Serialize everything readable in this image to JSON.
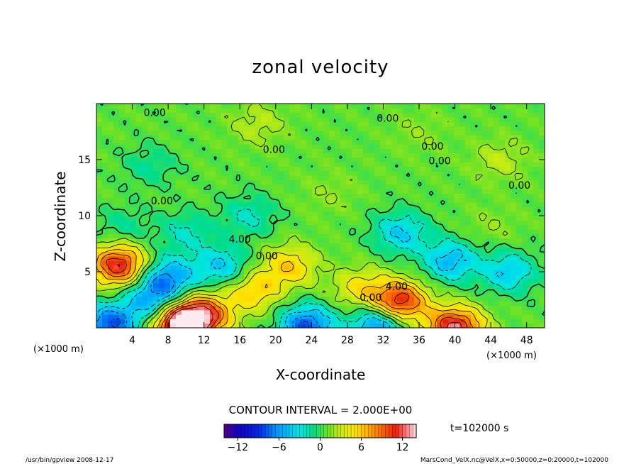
{
  "chart_data": {
    "type": "heatmap",
    "title": "zonal velocity",
    "xlabel": "X-coordinate",
    "ylabel": "Z-coordinate",
    "xunit": "(×1000 m)",
    "xunit_right": "(×1000 m)",
    "xlim": [
      0,
      50
    ],
    "ylim": [
      0,
      20
    ],
    "xticks": [
      "4",
      "8",
      "12",
      "16",
      "20",
      "24",
      "28",
      "32",
      "36",
      "40",
      "44",
      "48"
    ],
    "xtick_values": [
      4,
      8,
      12,
      16,
      20,
      24,
      28,
      32,
      36,
      40,
      44,
      48
    ],
    "yticks": [
      "5",
      "10",
      "15"
    ],
    "ytick_values": [
      5,
      10,
      15
    ],
    "contour_interval_text": "CONTOUR INTERVAL = 2.000E+00",
    "time_text": "t=102000 s",
    "colorbar": {
      "min": -14,
      "max": 14,
      "ticks": [
        "−12",
        "−6",
        "0",
        "6",
        "12"
      ],
      "tick_values": [
        -12,
        -6,
        0,
        6,
        12
      ]
    },
    "contour_labels": [
      {
        "text": "0.00",
        "x": 6.5,
        "z": 18.9
      },
      {
        "text": "0.00",
        "x": 32.5,
        "z": 18.4
      },
      {
        "text": "0.00",
        "x": 19.8,
        "z": 15.6
      },
      {
        "text": "0.00",
        "x": 37.5,
        "z": 15.9
      },
      {
        "text": "0.00",
        "x": 38.3,
        "z": 14.6
      },
      {
        "text": "0.00",
        "x": 47.2,
        "z": 12.4
      },
      {
        "text": "0.00",
        "x": 7.3,
        "z": 11.0
      },
      {
        "text": "4.00",
        "x": 16.0,
        "z": 7.6
      },
      {
        "text": "0.00",
        "x": 19.0,
        "z": 6.1
      },
      {
        "text": "4.00",
        "x": 33.5,
        "z": 3.4
      },
      {
        "text": "0.00",
        "x": 30.6,
        "z": 2.4
      }
    ],
    "features": [
      {
        "x": 2.5,
        "z": 5.6,
        "value": 11
      },
      {
        "x": 9.5,
        "z": 0.3,
        "value": 14
      },
      {
        "x": 12.0,
        "z": 1.2,
        "value": 9
      },
      {
        "x": 33.8,
        "z": 2.3,
        "value": 11
      },
      {
        "x": 40.0,
        "z": 0.0,
        "value": 12
      },
      {
        "x": 17.5,
        "z": 3.3,
        "value": 5
      },
      {
        "x": 21.5,
        "z": 5.5,
        "value": 5
      },
      {
        "x": 29.5,
        "z": 3.5,
        "value": 4
      },
      {
        "x": 8.0,
        "z": 4.5,
        "value": -7
      },
      {
        "x": 6.0,
        "z": 2.5,
        "value": -6
      },
      {
        "x": 14.0,
        "z": 5.5,
        "value": -5
      },
      {
        "x": 10.0,
        "z": 8.5,
        "value": -3
      },
      {
        "x": 17.0,
        "z": 10.0,
        "value": -3
      },
      {
        "x": 34.0,
        "z": 8.5,
        "value": -5
      },
      {
        "x": 39.5,
        "z": 6.0,
        "value": -6
      },
      {
        "x": 46.0,
        "z": 5.0,
        "value": -5
      },
      {
        "x": 1.5,
        "z": 0.3,
        "value": -9
      },
      {
        "x": 23.5,
        "z": 0.2,
        "value": -9
      },
      {
        "x": 31.5,
        "z": 0.3,
        "value": -8
      },
      {
        "x": 6.0,
        "z": 14.5,
        "value": -2
      },
      {
        "x": 45.0,
        "z": 15.0,
        "value": 2
      },
      {
        "x": 18.0,
        "z": 18.2,
        "value": 2
      },
      {
        "x": 36.0,
        "z": 17.5,
        "value": 1
      },
      {
        "x": 3.0,
        "z": 9.0,
        "value": -2
      },
      {
        "x": 26.0,
        "z": 12.0,
        "value": 1
      },
      {
        "x": 44.0,
        "z": 9.0,
        "value": 1
      }
    ]
  },
  "footer": {
    "left_text": "/usr/bin/gpview  2008-12-17",
    "right_text": "MarsCond_VelX.nc@VelX,x=0:50000,z=0:20000,t=102000"
  }
}
